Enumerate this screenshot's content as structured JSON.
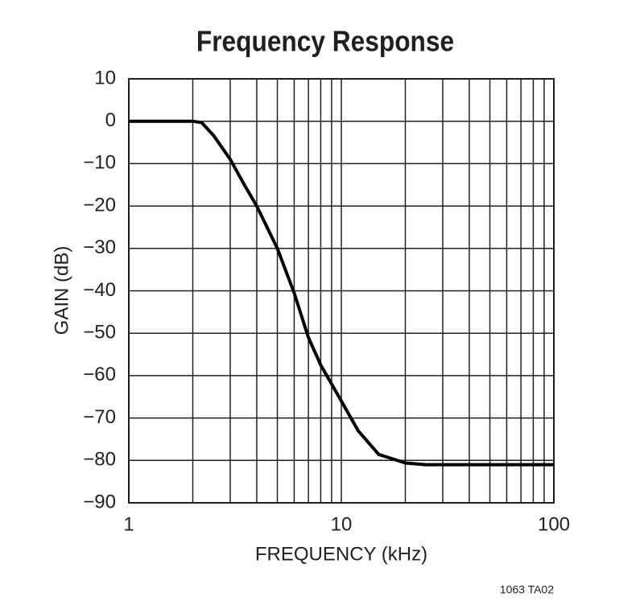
{
  "chart_data": {
    "type": "line",
    "title": "Frequency Response",
    "x_label": "FREQUENCY (kHz)",
    "y_label": "GAIN (dB)",
    "footnote": "1063 TA02",
    "x": [
      1,
      2,
      2.2,
      2.5,
      3,
      3.5,
      4,
      5,
      6,
      7,
      8,
      10,
      12,
      15,
      20,
      25,
      30,
      50,
      100
    ],
    "values": [
      0,
      0,
      -0.3,
      -3.3,
      -9,
      -15,
      -20,
      -30,
      -40.5,
      -51,
      -57.5,
      -66,
      -73,
      -78.6,
      -80.6,
      -81,
      -81,
      -81,
      -81
    ],
    "color": "#000000",
    "xlog": true,
    "xlim": [
      1,
      100
    ],
    "xticks": [
      1,
      10,
      100
    ],
    "xminor": [
      2,
      3,
      4,
      5,
      6,
      7,
      8,
      9,
      20,
      30,
      40,
      50,
      60,
      70,
      80,
      90
    ],
    "ylim": [
      -90,
      10
    ],
    "yticks": [
      {
        "value": -90,
        "label": "−90"
      },
      {
        "value": -80,
        "label": "−80"
      },
      {
        "value": -70,
        "label": "−70"
      },
      {
        "value": -60,
        "label": "−60"
      },
      {
        "value": -50,
        "label": "−50"
      },
      {
        "value": -40,
        "label": "−40"
      },
      {
        "value": -30,
        "label": "−30"
      },
      {
        "value": -20,
        "label": "−20"
      },
      {
        "value": -10,
        "label": "−10"
      },
      0,
      10
    ],
    "grid": true
  }
}
